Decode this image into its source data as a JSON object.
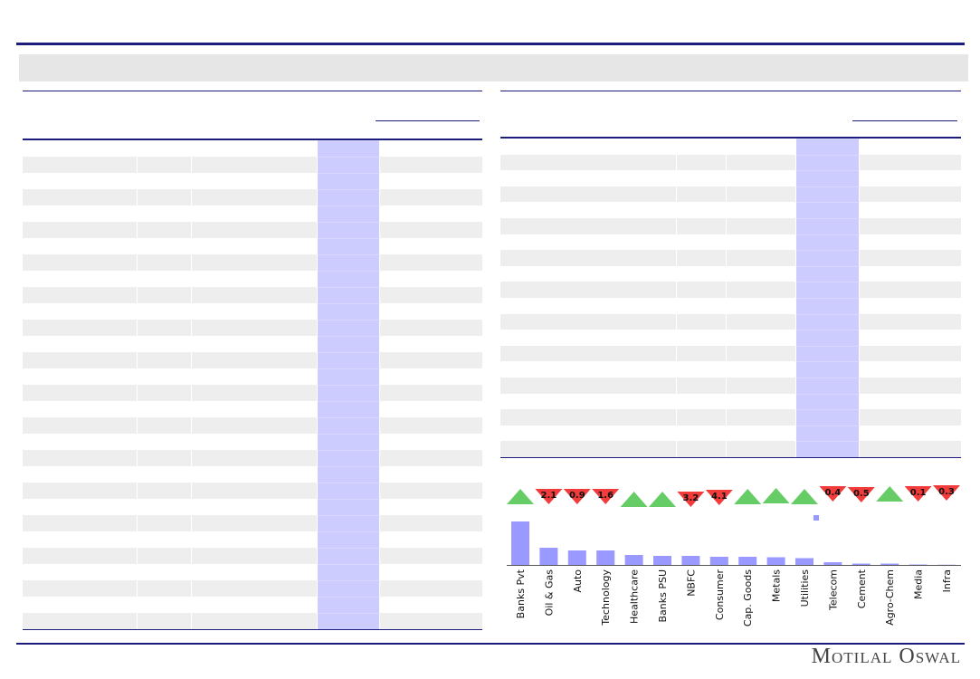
{
  "brand": {
    "name": "Motilal Oswal"
  },
  "colors": {
    "rule": "#1c1c7c",
    "band": "#e6e6e6",
    "stripe": "#eeeeee",
    "highlight_column": "#ccccff",
    "bar": "#9999ff",
    "up_marker": "#66cc66",
    "down_marker": "#f23b3b"
  },
  "chart_data": {
    "type": "bar",
    "categories": [
      "Banks Pvt",
      "Oil & Gas",
      "Auto",
      "Technology",
      "Healthcare",
      "Banks PSU",
      "NBFC",
      "Consumer",
      "Cap. Goods",
      "Metals",
      "Utilities",
      "Telecom",
      "Cement",
      "Agro-Chem",
      "Media",
      "Infra"
    ],
    "values": [
      19.2,
      7.6,
      6.4,
      6.4,
      4.4,
      4.0,
      4.0,
      3.6,
      3.6,
      3.4,
      3.0,
      1.2,
      0.6,
      0.6,
      0.2,
      0.1
    ],
    "change_markers": [
      {
        "direction": "up"
      },
      {
        "direction": "down",
        "label": "2.1"
      },
      {
        "direction": "down",
        "label": "0.9"
      },
      {
        "direction": "down",
        "label": "1.6"
      },
      {
        "direction": "up"
      },
      {
        "direction": "up"
      },
      {
        "direction": "down",
        "label": "3.2"
      },
      {
        "direction": "down",
        "label": "4.1"
      },
      {
        "direction": "up"
      },
      {
        "direction": "up"
      },
      {
        "direction": "up"
      },
      {
        "direction": "down",
        "label": "0.4"
      },
      {
        "direction": "down",
        "label": "0.5"
      },
      {
        "direction": "up"
      },
      {
        "direction": "down",
        "label": "0.1"
      },
      {
        "direction": "down",
        "label": "0.3"
      }
    ],
    "grid": false
  }
}
